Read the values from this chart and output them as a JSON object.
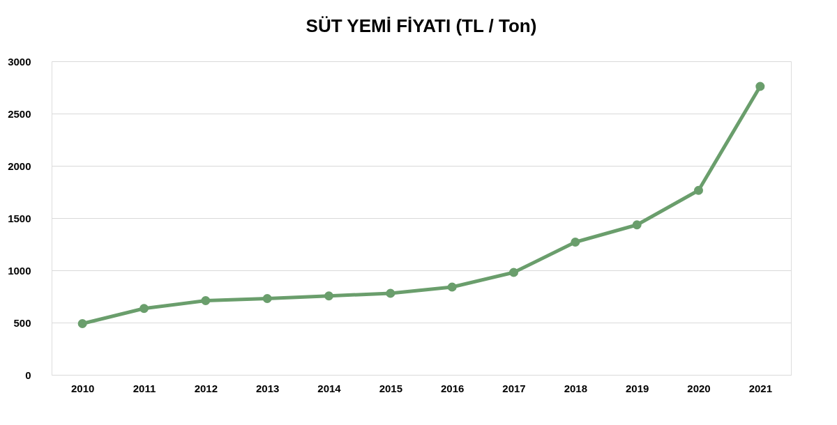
{
  "chart_data": {
    "type": "line",
    "title": "SÜT YEMİ FİYATI (TL / Ton)",
    "categories": [
      "2010",
      "2011",
      "2012",
      "2013",
      "2014",
      "2015",
      "2016",
      "2017",
      "2018",
      "2019",
      "2020",
      "2021"
    ],
    "series": [
      {
        "color": "#6a9e6c",
        "values": [
          490,
          635,
          710,
          730,
          755,
          780,
          840,
          980,
          1270,
          1435,
          1765,
          2760
        ]
      }
    ],
    "ylim": [
      0,
      3000
    ],
    "yticks": [
      0,
      500,
      1000,
      1500,
      2000,
      2500,
      3000
    ],
    "grid": "y",
    "marker": "circle",
    "line_style": "solid",
    "legend": false
  }
}
